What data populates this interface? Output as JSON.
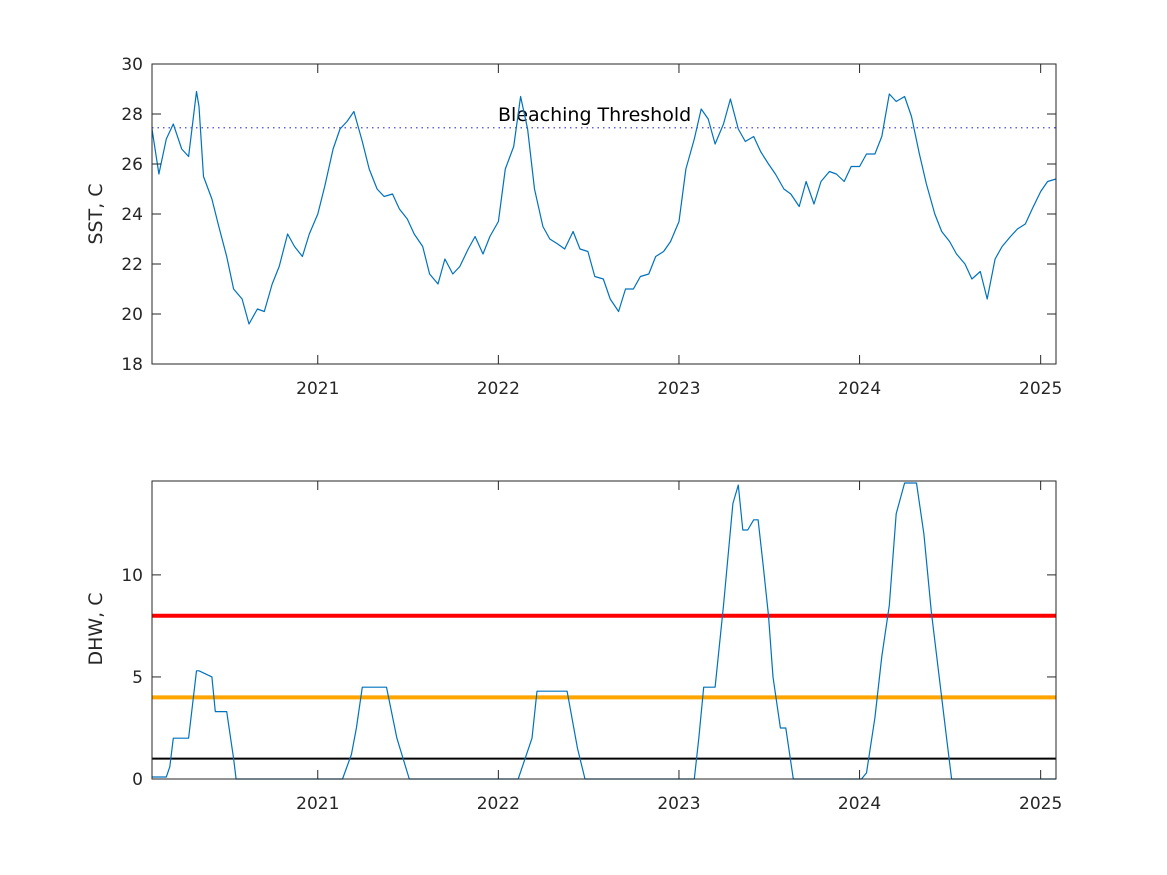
{
  "chart_data": [
    {
      "type": "line",
      "title": "",
      "xlabel": "",
      "ylabel": "SST, C",
      "xlim": [
        "2020-02-01",
        "2025-02-01"
      ],
      "ylim": [
        18,
        30
      ],
      "xticks": [
        "2021-01-01",
        "2022-01-01",
        "2023-01-01",
        "2024-01-01",
        "2025-01-01"
      ],
      "xtick_labels": [
        "2021",
        "2022",
        "2023",
        "2024",
        "2025"
      ],
      "yticks": [
        18,
        20,
        22,
        24,
        26,
        28,
        30
      ],
      "grid": false,
      "annotation": {
        "text": "Bleaching Threshold",
        "x": "2022-01-01",
        "y": 28
      },
      "threshold": {
        "value": 27.45,
        "style": "dotted",
        "color": "#4a4ae0"
      },
      "series_color": "#0072bd",
      "series": [
        {
          "x": [
            "2020-02-01",
            "2020-02-15",
            "2020-03-01",
            "2020-03-15",
            "2020-04-01",
            "2020-04-15",
            "2020-05-01",
            "2020-05-06",
            "2020-05-15",
            "2020-06-01",
            "2020-06-15",
            "2020-07-01",
            "2020-07-15",
            "2020-08-01",
            "2020-08-15",
            "2020-09-01",
            "2020-09-15",
            "2020-10-01",
            "2020-10-15",
            "2020-11-01",
            "2020-11-15",
            "2020-12-01",
            "2020-12-15",
            "2021-01-01",
            "2021-01-15",
            "2021-02-01",
            "2021-02-15",
            "2021-03-01",
            "2021-03-15",
            "2021-04-01",
            "2021-04-15",
            "2021-05-01",
            "2021-05-15",
            "2021-06-01",
            "2021-06-15",
            "2021-07-01",
            "2021-07-15",
            "2021-08-01",
            "2021-08-15",
            "2021-09-01",
            "2021-09-15",
            "2021-10-01",
            "2021-10-15",
            "2021-11-01",
            "2021-11-15",
            "2021-12-01",
            "2021-12-15",
            "2022-01-01",
            "2022-01-15",
            "2022-02-01",
            "2022-02-15",
            "2022-03-01",
            "2022-03-15",
            "2022-04-01",
            "2022-04-15",
            "2022-05-01",
            "2022-05-15",
            "2022-06-01",
            "2022-06-15",
            "2022-07-01",
            "2022-07-15",
            "2022-08-01",
            "2022-08-15",
            "2022-09-01",
            "2022-09-15",
            "2022-10-01",
            "2022-10-15",
            "2022-11-01",
            "2022-11-15",
            "2022-12-01",
            "2022-12-15",
            "2023-01-01",
            "2023-01-15",
            "2023-02-01",
            "2023-02-15",
            "2023-03-01",
            "2023-03-15",
            "2023-04-01",
            "2023-04-15",
            "2023-05-01",
            "2023-05-15",
            "2023-06-01",
            "2023-06-15",
            "2023-07-01",
            "2023-07-15",
            "2023-08-01",
            "2023-08-15",
            "2023-09-01",
            "2023-09-15",
            "2023-10-01",
            "2023-10-15",
            "2023-11-01",
            "2023-11-15",
            "2023-12-01",
            "2023-12-15",
            "2024-01-01",
            "2024-01-15",
            "2024-02-01",
            "2024-02-15",
            "2024-03-01",
            "2024-03-15",
            "2024-04-01",
            "2024-04-15",
            "2024-05-01",
            "2024-05-15",
            "2024-06-01",
            "2024-06-15",
            "2024-07-01",
            "2024-07-15",
            "2024-08-01",
            "2024-08-15",
            "2024-09-01",
            "2024-09-15",
            "2024-10-01",
            "2024-10-15",
            "2024-11-01",
            "2024-11-15",
            "2024-12-01",
            "2024-12-15",
            "2025-01-01",
            "2025-01-15",
            "2025-02-01"
          ],
          "y": [
            27.4,
            25.6,
            27.0,
            27.6,
            26.6,
            26.3,
            28.9,
            28.3,
            25.5,
            24.6,
            23.5,
            22.3,
            21.0,
            20.6,
            19.6,
            20.2,
            20.1,
            21.2,
            21.9,
            23.2,
            22.7,
            22.3,
            23.2,
            24.0,
            25.1,
            26.6,
            27.4,
            27.7,
            28.1,
            26.9,
            25.8,
            25.0,
            24.7,
            24.8,
            24.2,
            23.8,
            23.2,
            22.7,
            21.6,
            21.2,
            22.2,
            21.6,
            21.9,
            22.6,
            23.1,
            22.4,
            23.1,
            23.7,
            25.8,
            26.7,
            28.7,
            27.4,
            25.0,
            23.5,
            23.0,
            22.8,
            22.6,
            23.3,
            22.6,
            22.5,
            21.5,
            21.4,
            20.6,
            20.1,
            21.0,
            21.0,
            21.5,
            21.6,
            22.3,
            22.5,
            22.9,
            23.7,
            25.8,
            27.0,
            28.2,
            27.8,
            26.8,
            27.6,
            28.6,
            27.4,
            26.9,
            27.1,
            26.5,
            26.0,
            25.6,
            25.0,
            24.8,
            24.3,
            25.3,
            24.4,
            25.3,
            25.7,
            25.6,
            25.3,
            25.9,
            25.9,
            26.4,
            26.4,
            27.1,
            28.8,
            28.5,
            28.7,
            27.9,
            26.4,
            25.2,
            24.0,
            23.3,
            22.9,
            22.4,
            22.0,
            21.4,
            21.7,
            20.6,
            22.2,
            22.7,
            23.1,
            23.4,
            23.6,
            24.2,
            24.9,
            25.3,
            25.4
          ]
        }
      ]
    },
    {
      "type": "line",
      "title": "",
      "xlabel": "",
      "ylabel": "DHW, C",
      "xlim": [
        "2020-02-01",
        "2025-02-01"
      ],
      "ylim": [
        0,
        14.6
      ],
      "xticks": [
        "2021-01-01",
        "2022-01-01",
        "2023-01-01",
        "2024-01-01",
        "2025-01-01"
      ],
      "xtick_labels": [
        "2021",
        "2022",
        "2023",
        "2024",
        "2025"
      ],
      "yticks": [
        0,
        5,
        10
      ],
      "grid": false,
      "series_color": "#0072bd",
      "reference_lines": [
        {
          "value": 1,
          "color": "#000000"
        },
        {
          "value": 4,
          "color": "#ffa500"
        },
        {
          "value": 8,
          "color": "#ff0000"
        }
      ],
      "series": [
        {
          "x": [
            "2020-02-01",
            "2020-03-01",
            "2020-03-08",
            "2020-03-15",
            "2020-04-01",
            "2020-04-15",
            "2020-05-01",
            "2020-05-06",
            "2020-06-01",
            "2020-06-08",
            "2020-06-15",
            "2020-07-01",
            "2020-07-15",
            "2020-07-20",
            "2021-02-20",
            "2021-03-10",
            "2021-03-20",
            "2021-04-01",
            "2021-05-10",
            "2021-05-20",
            "2021-06-10",
            "2021-07-05",
            "2022-02-10",
            "2022-03-10",
            "2022-03-20",
            "2022-04-01",
            "2022-05-01",
            "2022-05-20",
            "2022-06-10",
            "2022-06-25",
            "2023-01-01",
            "2023-02-01",
            "2023-02-10",
            "2023-02-20",
            "2023-03-15",
            "2023-04-01",
            "2023-04-20",
            "2023-05-01",
            "2023-05-10",
            "2023-05-20",
            "2023-06-01",
            "2023-06-10",
            "2023-06-20",
            "2023-07-01",
            "2023-07-10",
            "2023-07-25",
            "2023-08-05",
            "2023-08-20",
            "2023-09-05",
            "2023-09-15",
            "2023-09-25",
            "2024-01-05",
            "2024-01-15",
            "2024-02-01",
            "2024-02-15",
            "2024-03-01",
            "2024-03-15",
            "2024-04-01",
            "2024-04-10",
            "2024-04-25",
            "2024-05-10",
            "2024-05-25",
            "2024-06-10",
            "2024-06-25",
            "2024-07-05",
            "2024-07-15",
            "2025-02-01"
          ],
          "y": [
            0.1,
            0.1,
            0.6,
            2.0,
            2.0,
            2.0,
            5.3,
            5.3,
            5.0,
            3.3,
            3.3,
            3.3,
            1.0,
            0,
            0,
            1.2,
            2.5,
            4.5,
            4.5,
            4.5,
            2.0,
            0,
            0,
            2.0,
            4.3,
            4.3,
            4.3,
            4.3,
            1.5,
            0,
            0,
            0,
            2.0,
            4.5,
            4.5,
            8.5,
            13.5,
            14.4,
            12.2,
            12.2,
            12.7,
            12.7,
            10.5,
            8.0,
            5.0,
            2.5,
            2.5,
            0,
            0,
            0,
            0,
            0,
            0.3,
            3.0,
            6.0,
            8.5,
            13.0,
            14.5,
            14.5,
            14.5,
            12.0,
            8.2,
            5.0,
            2.0,
            0,
            0,
            0
          ]
        }
      ]
    }
  ]
}
